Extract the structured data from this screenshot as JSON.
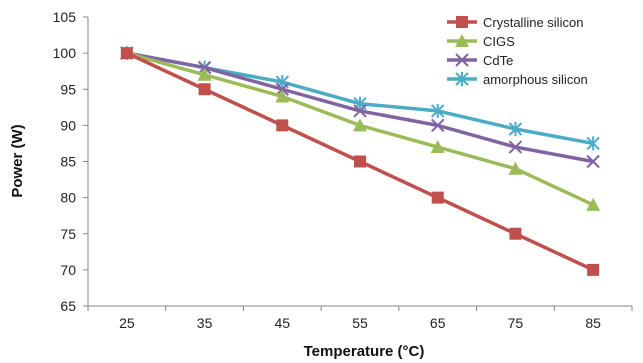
{
  "chart_data": {
    "type": "line",
    "title": "",
    "xlabel": "Temperature (°C)",
    "ylabel": "Power (W)",
    "categories": [
      "25",
      "35",
      "45",
      "55",
      "65",
      "75",
      "85"
    ],
    "ylim": [
      65,
      105
    ],
    "yticks": [
      65,
      70,
      75,
      80,
      85,
      90,
      95,
      100,
      105
    ],
    "grid": false,
    "legend_position": "top-right",
    "series": [
      {
        "name": "Crystalline silicon",
        "color": "#c0504d",
        "marker": "square",
        "values": [
          100,
          95,
          90,
          85,
          80,
          75,
          70
        ]
      },
      {
        "name": "CIGS",
        "color": "#9bbb59",
        "marker": "triangle",
        "values": [
          100,
          97,
          94,
          90,
          87,
          84,
          79
        ]
      },
      {
        "name": "CdTe",
        "color": "#8064a2",
        "marker": "x",
        "values": [
          100,
          98,
          95,
          92,
          90,
          87,
          85
        ]
      },
      {
        "name": "amorphous silicon",
        "color": "#4bacc6",
        "marker": "star",
        "values": [
          100,
          98,
          96,
          93,
          92,
          89.5,
          87.5
        ]
      }
    ]
  }
}
